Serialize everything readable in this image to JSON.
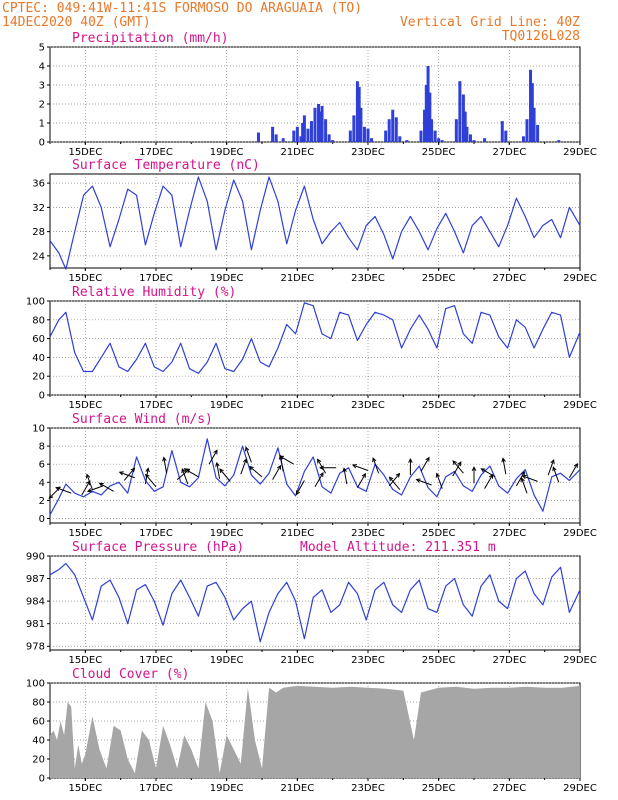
{
  "header": {
    "line1": "CPTEC:   049:41W-11:41S  FORMOSO DO ARAGUAIA (TO)",
    "line2_left": "14DEC2020 40Z (GMT)",
    "line2_right": "Vertical Grid Line: 40Z",
    "line3_right": "TQ0126L028"
  },
  "colors": {
    "header": "#e8782a",
    "title": "#d4148c",
    "line": "#2f3fd8",
    "bar": "#2f3fd8",
    "cloud": "#a6a6a6"
  },
  "chart_data": [
    {
      "type": "bar",
      "title": "Precipitation  (mm/h)",
      "x_tick_labels": [
        "15DEC",
        "17DEC",
        "19DEC",
        "21DEC",
        "23DEC",
        "25DEC",
        "27DEC",
        "29DEC"
      ],
      "xlim_days": [
        14,
        29
      ],
      "ylim": [
        0,
        5
      ],
      "yticks": [
        0,
        1,
        2,
        3,
        4,
        5
      ],
      "grid": true,
      "x_days": [
        19.9,
        20.3,
        20.4,
        20.6,
        20.9,
        21.0,
        21.1,
        21.15,
        21.2,
        21.3,
        21.4,
        21.5,
        21.6,
        21.65,
        21.7,
        21.8,
        21.9,
        22.0,
        22.5,
        22.6,
        22.7,
        22.75,
        22.8,
        22.9,
        23.0,
        23.1,
        23.5,
        23.6,
        23.7,
        23.8,
        23.9,
        24.1,
        24.5,
        24.6,
        24.65,
        24.7,
        24.75,
        24.8,
        24.9,
        25.0,
        25.1,
        25.5,
        25.6,
        25.7,
        25.75,
        25.8,
        25.9,
        26.0,
        26.3,
        26.8,
        26.9,
        27.4,
        27.5,
        27.6,
        27.65,
        27.7,
        27.8,
        28.4
      ],
      "values": [
        0.5,
        0.8,
        0.4,
        0.2,
        0.6,
        0.8,
        0.3,
        1.0,
        1.4,
        0.7,
        1.1,
        1.8,
        2.0,
        1.6,
        1.9,
        1.2,
        0.4,
        0.1,
        0.6,
        1.4,
        3.2,
        2.9,
        1.8,
        0.8,
        0.7,
        0.2,
        0.6,
        1.2,
        1.7,
        1.3,
        0.3,
        0.1,
        0.6,
        1.7,
        3.0,
        4.0,
        2.6,
        1.2,
        0.6,
        0.2,
        0.1,
        1.2,
        3.2,
        2.5,
        1.6,
        0.8,
        0.4,
        0.1,
        0.2,
        1.1,
        0.6,
        0.3,
        1.2,
        3.8,
        3.1,
        1.8,
        0.9,
        0.1
      ]
    },
    {
      "type": "line",
      "title": "Surface Temperature (nC)",
      "x_tick_labels": [
        "15DEC",
        "17DEC",
        "19DEC",
        "21DEC",
        "23DEC",
        "25DEC",
        "27DEC",
        "29DEC"
      ],
      "xlim_days": [
        14,
        29
      ],
      "ylim": [
        22,
        37.5
      ],
      "yticks": [
        24,
        28,
        32,
        36
      ],
      "grid": true,
      "x_days": [
        14.0,
        14.25,
        14.45,
        14.7,
        14.95,
        15.2,
        15.45,
        15.7,
        15.95,
        16.2,
        16.45,
        16.7,
        16.95,
        17.2,
        17.45,
        17.7,
        17.95,
        18.2,
        18.45,
        18.7,
        18.95,
        19.2,
        19.45,
        19.7,
        19.95,
        20.2,
        20.45,
        20.7,
        20.95,
        21.2,
        21.45,
        21.7,
        21.95,
        22.2,
        22.45,
        22.7,
        22.95,
        23.2,
        23.45,
        23.7,
        23.95,
        24.2,
        24.45,
        24.7,
        24.95,
        25.2,
        25.45,
        25.7,
        25.95,
        26.2,
        26.45,
        26.7,
        26.95,
        27.2,
        27.45,
        27.7,
        27.95,
        28.2,
        28.45,
        28.7,
        29.0
      ],
      "values": [
        26.5,
        24.5,
        21.8,
        28.0,
        34.0,
        35.5,
        32.0,
        25.5,
        30.0,
        35.0,
        34.0,
        25.8,
        31.0,
        35.5,
        34.0,
        25.5,
        31.5,
        37.0,
        33.0,
        25.0,
        31.5,
        36.5,
        33.0,
        25.0,
        31.5,
        37.0,
        33.0,
        26.0,
        31.5,
        35.5,
        30.0,
        26.0,
        28.0,
        29.5,
        27.0,
        25.0,
        29.0,
        30.5,
        27.5,
        23.5,
        28.0,
        30.5,
        28.0,
        25.0,
        28.5,
        31.0,
        28.0,
        24.5,
        29.0,
        30.5,
        28.0,
        25.5,
        29.0,
        33.5,
        30.5,
        27.0,
        29.0,
        30.0,
        27.0,
        32.0,
        29.0
      ]
    },
    {
      "type": "line",
      "title": "Relative Humidity (%)",
      "x_tick_labels": [
        "15DEC",
        "17DEC",
        "19DEC",
        "21DEC",
        "23DEC",
        "25DEC",
        "27DEC",
        "29DEC"
      ],
      "xlim_days": [
        14,
        29
      ],
      "ylim": [
        0,
        100
      ],
      "yticks": [
        0,
        20,
        40,
        60,
        80,
        100
      ],
      "grid": true,
      "x_days": [
        14.0,
        14.25,
        14.45,
        14.7,
        14.95,
        15.2,
        15.45,
        15.7,
        15.95,
        16.2,
        16.45,
        16.7,
        16.95,
        17.2,
        17.45,
        17.7,
        17.95,
        18.2,
        18.45,
        18.7,
        18.95,
        19.2,
        19.45,
        19.7,
        19.95,
        20.2,
        20.45,
        20.7,
        20.95,
        21.2,
        21.45,
        21.7,
        21.95,
        22.2,
        22.45,
        22.7,
        22.95,
        23.2,
        23.45,
        23.7,
        23.95,
        24.2,
        24.45,
        24.7,
        24.95,
        25.2,
        25.45,
        25.7,
        25.95,
        26.2,
        26.45,
        26.7,
        26.95,
        27.2,
        27.45,
        27.7,
        27.95,
        28.2,
        28.45,
        28.7,
        29.0
      ],
      "values": [
        62,
        80,
        88,
        45,
        25,
        25,
        40,
        55,
        30,
        25,
        38,
        55,
        30,
        25,
        35,
        55,
        28,
        23,
        35,
        55,
        28,
        25,
        38,
        60,
        35,
        30,
        50,
        75,
        65,
        98,
        95,
        65,
        60,
        88,
        85,
        58,
        75,
        88,
        85,
        80,
        50,
        70,
        85,
        70,
        50,
        92,
        95,
        65,
        55,
        88,
        85,
        62,
        50,
        80,
        72,
        50,
        70,
        88,
        85,
        40,
        67
      ]
    },
    {
      "type": "line",
      "title": "Surface Wind (m/s)",
      "x_tick_labels": [
        "15DEC",
        "17DEC",
        "19DEC",
        "21DEC",
        "23DEC",
        "25DEC",
        "27DEC",
        "29DEC"
      ],
      "xlim_days": [
        14,
        29
      ],
      "ylim": [
        -0.5,
        10
      ],
      "yticks": [
        0,
        2,
        4,
        6,
        8,
        10
      ],
      "grid": true,
      "x_days": [
        14.0,
        14.25,
        14.45,
        14.7,
        14.95,
        15.2,
        15.45,
        15.7,
        15.95,
        16.2,
        16.45,
        16.7,
        16.95,
        17.2,
        17.45,
        17.7,
        17.95,
        18.2,
        18.45,
        18.7,
        18.95,
        19.2,
        19.45,
        19.7,
        19.95,
        20.2,
        20.45,
        20.7,
        20.95,
        21.2,
        21.45,
        21.7,
        21.95,
        22.2,
        22.45,
        22.7,
        22.95,
        23.2,
        23.45,
        23.7,
        23.95,
        24.2,
        24.45,
        24.7,
        24.95,
        25.2,
        25.45,
        25.7,
        25.95,
        26.2,
        26.45,
        26.7,
        26.95,
        27.2,
        27.45,
        27.7,
        27.95,
        28.2,
        28.45,
        28.7,
        29.0
      ],
      "values": [
        0.4,
        2.2,
        3.8,
        2.8,
        2.4,
        3.0,
        2.6,
        3.6,
        4.0,
        2.8,
        6.8,
        4.2,
        3.0,
        3.5,
        7.5,
        4.0,
        3.5,
        4.5,
        8.8,
        4.5,
        3.6,
        4.8,
        8.0,
        4.8,
        3.8,
        5.0,
        7.8,
        3.8,
        2.5,
        5.2,
        6.8,
        3.5,
        2.8,
        5.0,
        5.6,
        3.5,
        3.0,
        6.0,
        4.8,
        3.2,
        2.6,
        4.6,
        5.8,
        3.4,
        2.4,
        4.6,
        5.2,
        3.6,
        3.0,
        4.8,
        5.8,
        3.6,
        2.8,
        4.4,
        5.4,
        2.6,
        0.8,
        4.6,
        5.0,
        4.2,
        5.4
      ],
      "arrows_x_days": [
        14.3,
        14.6,
        14.9,
        15.2,
        15.5,
        15.8,
        16.1,
        16.4,
        16.7,
        17.0,
        17.3,
        17.6,
        17.9,
        18.2,
        18.5,
        18.8,
        19.1,
        19.4,
        19.7,
        20.0,
        20.3,
        20.6,
        20.9,
        21.2,
        21.5,
        21.8,
        22.1,
        22.4,
        22.7,
        23.0,
        23.3,
        23.6,
        23.9,
        24.2,
        24.5,
        24.8,
        25.1,
        25.4,
        25.7,
        26.0,
        26.3,
        26.6,
        26.9,
        27.2,
        27.5,
        27.8,
        28.1,
        28.4,
        28.7
      ],
      "arrows_speed": [
        3.5,
        2.8,
        2.6,
        3.2,
        3.6,
        3.0,
        4.2,
        4.5,
        3.8,
        3.5,
        5.0,
        4.3,
        3.8,
        4.6,
        6.0,
        4.4,
        4.1,
        4.9,
        6.2,
        4.6,
        4.3,
        5.2,
        6.0,
        4.2,
        3.5,
        5.0,
        5.6,
        3.8,
        3.4,
        5.3,
        5.0,
        3.6,
        3.2,
        4.8,
        5.2,
        3.7,
        3.3,
        4.7,
        5.0,
        3.9,
        3.3,
        4.6,
        4.9,
        3.6,
        2.8,
        4.1,
        4.8,
        4.0,
        4.5
      ],
      "arrows_dir_deg": [
        135,
        200,
        300,
        250,
        160,
        210,
        310,
        200,
        280,
        230,
        260,
        320,
        250,
        210,
        300,
        260,
        230,
        290,
        250,
        220,
        300,
        260,
        210,
        120,
        300,
        240,
        180,
        260,
        300,
        200,
        250,
        310,
        230,
        270,
        300,
        200,
        250,
        300,
        230,
        270,
        300,
        210,
        260,
        300,
        250,
        200,
        290,
        250,
        300
      ]
    },
    {
      "type": "line",
      "title": "Surface Pressure (hPa)",
      "annotation": "Model Altitude: 211.351 m",
      "x_tick_labels": [
        "15DEC",
        "17DEC",
        "19DEC",
        "21DEC",
        "23DEC",
        "25DEC",
        "27DEC",
        "29DEC"
      ],
      "xlim_days": [
        14,
        29
      ],
      "ylim": [
        977.5,
        990
      ],
      "yticks": [
        978,
        981,
        984,
        987,
        990
      ],
      "grid": true,
      "x_days": [
        14.0,
        14.25,
        14.45,
        14.7,
        14.95,
        15.2,
        15.45,
        15.7,
        15.95,
        16.2,
        16.45,
        16.7,
        16.95,
        17.2,
        17.45,
        17.7,
        17.95,
        18.2,
        18.45,
        18.7,
        18.95,
        19.2,
        19.45,
        19.7,
        19.95,
        20.2,
        20.45,
        20.7,
        20.95,
        21.2,
        21.45,
        21.7,
        21.95,
        22.2,
        22.45,
        22.7,
        22.95,
        23.2,
        23.45,
        23.7,
        23.95,
        24.2,
        24.45,
        24.7,
        24.95,
        25.2,
        25.45,
        25.7,
        25.95,
        26.2,
        26.45,
        26.7,
        26.95,
        27.2,
        27.45,
        27.7,
        27.95,
        28.2,
        28.45,
        28.7,
        29.0
      ],
      "values": [
        987.5,
        988.2,
        989.0,
        987.5,
        984.5,
        981.5,
        986.0,
        986.8,
        984.5,
        981.0,
        985.5,
        986.2,
        984.0,
        980.8,
        985.0,
        986.8,
        984.5,
        982.0,
        986.0,
        986.5,
        984.5,
        981.5,
        983.0,
        984.0,
        978.6,
        982.5,
        985.0,
        986.5,
        984.0,
        979.0,
        984.5,
        985.5,
        982.5,
        983.5,
        986.5,
        985.0,
        981.5,
        985.5,
        986.5,
        983.5,
        982.5,
        985.5,
        986.8,
        983.0,
        982.5,
        986.0,
        987.0,
        983.5,
        982.0,
        986.0,
        987.5,
        984.0,
        983.0,
        987.0,
        988.0,
        985.0,
        983.5,
        987.2,
        988.5,
        982.5,
        985.5
      ]
    },
    {
      "type": "area",
      "title": "Cloud Cover (%)",
      "x_tick_labels": [
        "15DEC",
        "17DEC",
        "19DEC",
        "21DEC",
        "23DEC",
        "25DEC",
        "27DEC",
        "29DEC"
      ],
      "xlim_days": [
        14,
        29
      ],
      "ylim": [
        0,
        100
      ],
      "yticks": [
        0,
        20,
        40,
        60,
        80,
        100
      ],
      "grid": true,
      "x_days": [
        14.0,
        14.1,
        14.2,
        14.3,
        14.4,
        14.5,
        14.6,
        14.7,
        14.8,
        14.9,
        15.0,
        15.2,
        15.4,
        15.6,
        15.8,
        16.0,
        16.2,
        16.4,
        16.6,
        16.8,
        17.0,
        17.2,
        17.4,
        17.6,
        17.8,
        18.0,
        18.2,
        18.4,
        18.6,
        18.8,
        19.0,
        19.2,
        19.4,
        19.6,
        19.8,
        20.0,
        20.2,
        20.4,
        20.6,
        20.8,
        21.0,
        21.5,
        22.0,
        22.5,
        23.0,
        23.5,
        24.0,
        24.3,
        24.5,
        25.0,
        25.5,
        26.0,
        26.5,
        27.0,
        27.5,
        28.0,
        28.5,
        29.0
      ],
      "values": [
        45,
        50,
        40,
        60,
        45,
        80,
        75,
        10,
        35,
        15,
        25,
        65,
        30,
        10,
        55,
        50,
        20,
        5,
        50,
        40,
        10,
        55,
        35,
        10,
        45,
        30,
        10,
        80,
        60,
        5,
        45,
        30,
        15,
        95,
        40,
        10,
        95,
        90,
        95,
        96,
        97,
        96,
        95,
        96,
        95,
        94,
        92,
        40,
        90,
        95,
        96,
        94,
        95,
        95,
        96,
        95,
        95,
        97
      ]
    }
  ]
}
